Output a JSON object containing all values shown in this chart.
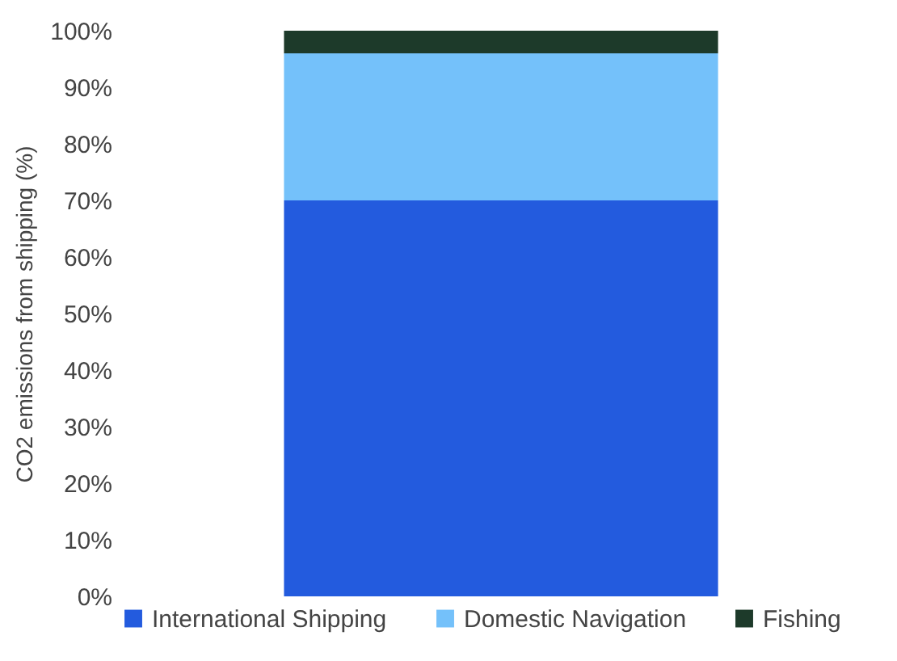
{
  "chart_data": {
    "type": "bar",
    "ylabel": "CO2 emissions from shipping (%)",
    "categories": [
      null
    ],
    "stacked": true,
    "series": [
      {
        "name": "International Shipping",
        "color": "#235bde",
        "values": [
          70
        ]
      },
      {
        "name": "Domestic Navigation",
        "color": "#74c1fa",
        "values": [
          26
        ]
      },
      {
        "name": "Fishing",
        "color": "#1d3a2a",
        "values": [
          4
        ]
      }
    ],
    "ylim": [
      0,
      100
    ],
    "yticks": [
      {
        "value": 0,
        "label": "0%"
      },
      {
        "value": 10,
        "label": "10%"
      },
      {
        "value": 20,
        "label": "20%"
      },
      {
        "value": 30,
        "label": "30%"
      },
      {
        "value": 40,
        "label": "40%"
      },
      {
        "value": 50,
        "label": "50%"
      },
      {
        "value": 60,
        "label": "60%"
      },
      {
        "value": 70,
        "label": "70%"
      },
      {
        "value": 80,
        "label": "80%"
      },
      {
        "value": 90,
        "label": "90%"
      },
      {
        "value": 100,
        "label": "100%"
      }
    ],
    "grid": false,
    "legend": "bottom"
  }
}
